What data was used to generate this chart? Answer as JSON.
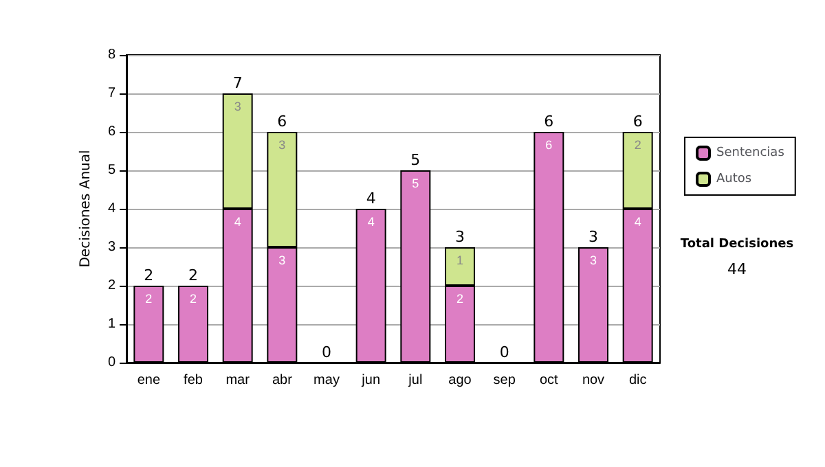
{
  "chart_data": {
    "type": "bar",
    "stacked": true,
    "ylabel": "Decisiones Anual",
    "categories": [
      "ene",
      "feb",
      "mar",
      "abr",
      "may",
      "jun",
      "jul",
      "ago",
      "sep",
      "oct",
      "nov",
      "dic"
    ],
    "series": [
      {
        "name": "Sentencias",
        "color": "#dd7ec4",
        "values": [
          2,
          2,
          4,
          3,
          0,
          4,
          5,
          2,
          0,
          6,
          3,
          4
        ],
        "value_labels": [
          "2",
          "2",
          "4",
          "3",
          null,
          "4",
          "5",
          "2",
          null,
          "6",
          "3",
          "4"
        ]
      },
      {
        "name": "Autos",
        "color": "#cfe58f",
        "values": [
          0,
          0,
          3,
          3,
          0,
          0,
          0,
          1,
          0,
          0,
          0,
          2
        ],
        "value_labels": [
          null,
          null,
          "3",
          "3",
          null,
          null,
          null,
          "1",
          null,
          null,
          null,
          "2"
        ]
      }
    ],
    "totals": [
      "2",
      "2",
      "7",
      "6",
      "0",
      "4",
      "5",
      "3",
      "0",
      "6",
      "3",
      "6"
    ],
    "ylim": [
      0,
      8
    ],
    "yticks": [
      0,
      1,
      2,
      3,
      4,
      5,
      6,
      7,
      8
    ],
    "grid": "y",
    "legend": "right",
    "annotations": [
      "Total Decisiones",
      "44"
    ]
  }
}
